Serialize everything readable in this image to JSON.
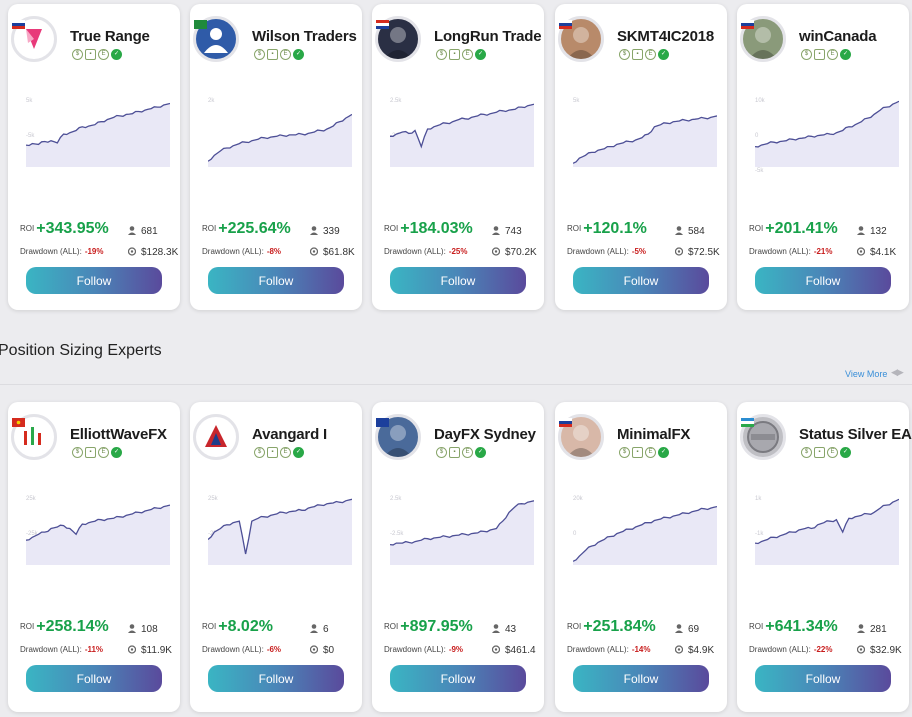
{
  "section_title": "Position Sizing Experts",
  "view_more": "View More",
  "labels": {
    "roi": "ROI",
    "drawdown": "Drawdown (ALL):",
    "follow": "Follow"
  },
  "colors": {
    "roi": "#18a14a",
    "drawdown": "#c81d1d",
    "line": "#4d4f96",
    "fill": "#e9e8f6"
  },
  "row1": [
    {
      "name": "True Range",
      "roi": "+343.95%",
      "drawdown": "-19%",
      "followers": "681",
      "aum": "$128.3K",
      "avatar": "pink-logo",
      "flag": "russia",
      "chart": {
        "axis_labels": [
          "5k",
          "-5k"
        ],
        "points": [
          0.3,
          0.32,
          0.31,
          0.35,
          0.36,
          0.33,
          0.45,
          0.47,
          0.5,
          0.55,
          0.56,
          0.58,
          0.62,
          0.65,
          0.68,
          0.7,
          0.72,
          0.73,
          0.76,
          0.78,
          0.8,
          0.82,
          0.85,
          0.87
        ]
      }
    },
    {
      "name": "Wilson Traders",
      "roi": "+225.64%",
      "drawdown": "-8%",
      "followers": "339",
      "aum": "$61.8K",
      "avatar": "person-icon",
      "flag": "saudi",
      "chart": {
        "axis_labels": [
          "2k"
        ],
        "points": [
          0.08,
          0.16,
          0.22,
          0.26,
          0.29,
          0.32,
          0.34,
          0.36,
          0.38,
          0.4,
          0.41,
          0.42,
          0.43,
          0.44,
          0.44,
          0.45,
          0.46,
          0.48,
          0.5,
          0.52,
          0.56,
          0.62,
          0.67,
          0.72
        ]
      }
    },
    {
      "name": "LongRun Trade",
      "roi": "+184.03%",
      "drawdown": "-25%",
      "followers": "743",
      "aum": "$70.2K",
      "avatar": "dark-photo",
      "flag": "thailand",
      "chart": {
        "axis_labels": [
          "2.5k",
          "-2.5k"
        ],
        "points": [
          0.42,
          0.45,
          0.48,
          0.46,
          0.5,
          0.28,
          0.52,
          0.55,
          0.58,
          0.6,
          0.62,
          0.65,
          0.66,
          0.68,
          0.7,
          0.72,
          0.73,
          0.75,
          0.77,
          0.78,
          0.79,
          0.82,
          0.84,
          0.86
        ]
      }
    },
    {
      "name": "SKMT4IC2018",
      "roi": "+120.1%",
      "drawdown": "-5%",
      "followers": "584",
      "aum": "$72.5K",
      "avatar": "man-photo",
      "flag": "slovakia",
      "chart": {
        "axis_labels": [
          "5k"
        ],
        "points": [
          0.05,
          0.12,
          0.16,
          0.2,
          0.23,
          0.25,
          0.28,
          0.31,
          0.33,
          0.35,
          0.37,
          0.4,
          0.45,
          0.55,
          0.58,
          0.6,
          0.62,
          0.63,
          0.64,
          0.65,
          0.66,
          0.67,
          0.68,
          0.7
        ]
      }
    },
    {
      "name": "winCanada",
      "roi": "+201.41%",
      "drawdown": "-21%",
      "followers": "132",
      "aum": "$4.1K",
      "avatar": "man-photo-2",
      "flag": "russia",
      "chart": {
        "axis_labels": [
          "10k",
          "0",
          "-5k"
        ],
        "points": [
          0.28,
          0.3,
          0.32,
          0.34,
          0.35,
          0.36,
          0.38,
          0.39,
          0.4,
          0.42,
          0.43,
          0.44,
          0.45,
          0.47,
          0.5,
          0.55,
          0.58,
          0.62,
          0.67,
          0.72,
          0.78,
          0.82,
          0.86,
          0.9
        ]
      }
    }
  ],
  "row2": [
    {
      "name": "ElliottWaveFX",
      "roi": "+258.14%",
      "drawdown": "-11%",
      "followers": "108",
      "aum": "$11.9K",
      "avatar": "candle-logo",
      "flag": "vietnam",
      "chart": {
        "axis_labels": [
          "25k",
          "-25k"
        ],
        "points": [
          0.34,
          0.38,
          0.42,
          0.45,
          0.5,
          0.52,
          0.54,
          0.5,
          0.42,
          0.56,
          0.58,
          0.6,
          0.62,
          0.63,
          0.64,
          0.66,
          0.68,
          0.7,
          0.72,
          0.74,
          0.76,
          0.78,
          0.8,
          0.82
        ]
      }
    },
    {
      "name": "Avangard I",
      "roi": "+8.02%",
      "drawdown": "-6%",
      "followers": "6",
      "aum": "$0",
      "avatar": "a-logo",
      "flag": "",
      "chart": {
        "axis_labels": [
          "25k",
          "-25k"
        ],
        "points": [
          0.35,
          0.45,
          0.5,
          0.55,
          0.58,
          0.6,
          0.15,
          0.6,
          0.64,
          0.66,
          0.68,
          0.7,
          0.72,
          0.73,
          0.74,
          0.75,
          0.78,
          0.8,
          0.82,
          0.84,
          0.85,
          0.86,
          0.88,
          0.9
        ]
      }
    },
    {
      "name": "DayFX Sydney",
      "roi": "+897.95%",
      "drawdown": "-9%",
      "followers": "43",
      "aum": "$461.4",
      "avatar": "boy-photo",
      "flag": "australia",
      "chart": {
        "axis_labels": [
          "2.5k",
          "-2.5k"
        ],
        "points": [
          0.28,
          0.3,
          0.3,
          0.31,
          0.32,
          0.34,
          0.36,
          0.37,
          0.38,
          0.39,
          0.4,
          0.41,
          0.42,
          0.43,
          0.44,
          0.46,
          0.48,
          0.5,
          0.6,
          0.72,
          0.8,
          0.84,
          0.86,
          0.88
        ]
      }
    },
    {
      "name": "MinimalFX",
      "roi": "+251.84%",
      "drawdown": "-14%",
      "followers": "69",
      "aum": "$4.9K",
      "avatar": "bald-photo",
      "flag": "russia",
      "chart": {
        "axis_labels": [
          "20k",
          "0"
        ],
        "points": [
          0.05,
          0.12,
          0.2,
          0.26,
          0.31,
          0.35,
          0.39,
          0.43,
          0.46,
          0.49,
          0.52,
          0.55,
          0.58,
          0.61,
          0.63,
          0.65,
          0.67,
          0.69,
          0.71,
          0.73,
          0.75,
          0.77,
          0.78,
          0.8
        ]
      }
    },
    {
      "name": "Status Silver EA",
      "roi": "+641.34%",
      "drawdown": "-22%",
      "followers": "281",
      "aum": "$32.9K",
      "avatar": "silver-badge",
      "flag": "uzbekistan",
      "chart": {
        "axis_labels": [
          "1k",
          "-1k"
        ],
        "points": [
          0.3,
          0.32,
          0.35,
          0.38,
          0.4,
          0.43,
          0.45,
          0.48,
          0.5,
          0.5,
          0.55,
          0.58,
          0.6,
          0.62,
          0.45,
          0.64,
          0.66,
          0.68,
          0.7,
          0.72,
          0.78,
          0.82,
          0.86,
          0.9
        ]
      }
    }
  ]
}
